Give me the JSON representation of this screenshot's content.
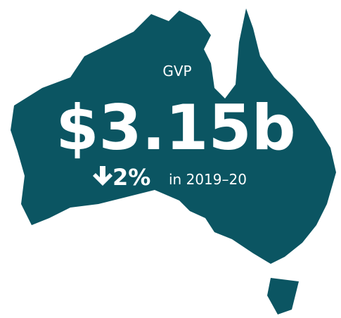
{
  "infographic": {
    "label": "GVP",
    "value": "$3.15b",
    "change": "2%",
    "period": "in 2019–20"
  }
}
